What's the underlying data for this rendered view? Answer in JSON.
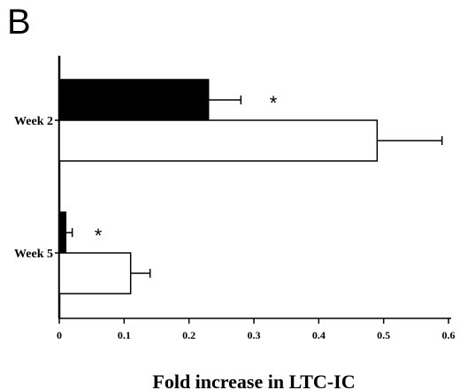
{
  "panel_label": "B",
  "chart_data": {
    "type": "bar",
    "orientation": "horizontal",
    "categories": [
      "Week 2",
      "Week 5"
    ],
    "category_labels": [
      "Week  2",
      "Week  5"
    ],
    "series": [
      {
        "fill": "#000000",
        "values": [
          0.23,
          0.01
        ],
        "errors": [
          0.05,
          0.01
        ]
      },
      {
        "fill": "#ffffff",
        "values": [
          0.49,
          0.11
        ],
        "errors": [
          0.1,
          0.03
        ]
      }
    ],
    "annotations": [
      {
        "text": "*",
        "category": "Week 2",
        "x": 0.33
      },
      {
        "text": "*",
        "category": "Week 5",
        "x": 0.06
      }
    ],
    "xlabel": "Fold increase in LTC-IC",
    "xlim": [
      0,
      0.6
    ],
    "xticks": [
      0,
      0.1,
      0.2,
      0.3,
      0.4,
      0.5,
      0.6
    ],
    "xtick_labels": [
      "0",
      "0.1",
      "0.2",
      "0.3",
      "0.4",
      "0.5",
      "0.6"
    ],
    "grid": false,
    "legend": false
  }
}
